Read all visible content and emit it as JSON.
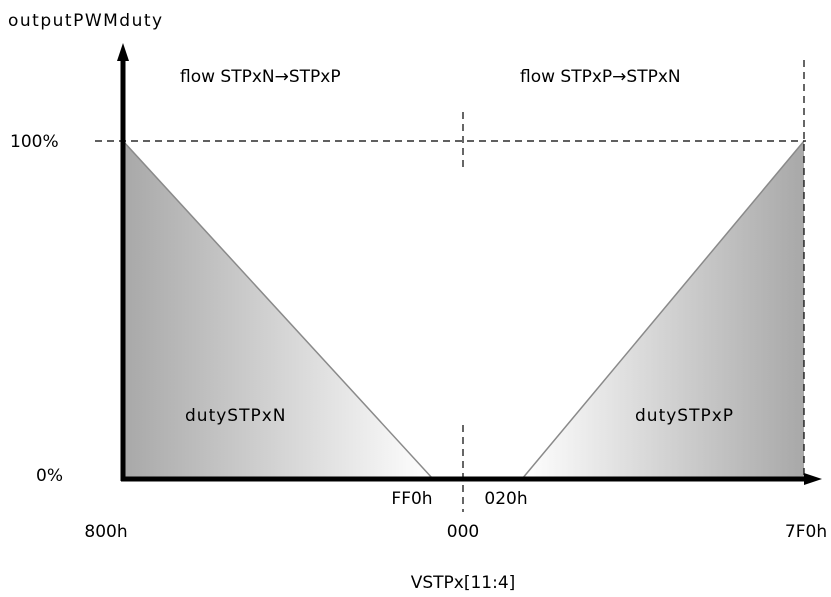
{
  "diagram": {
    "y_axis_title": "outputPWMduty",
    "x_axis_title": "VSTPx[11:4]",
    "y_ticks": {
      "top": "100%",
      "bottom": "0%"
    },
    "x_ticks": {
      "left": "800h",
      "center": "000",
      "right": "7F0h",
      "center_left": "FF0h",
      "center_right": "020h"
    },
    "flow_labels": {
      "left": "flow STPxN→STPxP",
      "right": "flow STPxP→STPxN"
    },
    "region_labels": {
      "left": "dutySTPxN",
      "right": "dutySTPxP"
    },
    "colors": {
      "axis": "#000000",
      "ramp_line": "#8a8a8a",
      "fill_dark": "#a8a8a8",
      "fill_light": "#ffffff"
    }
  }
}
